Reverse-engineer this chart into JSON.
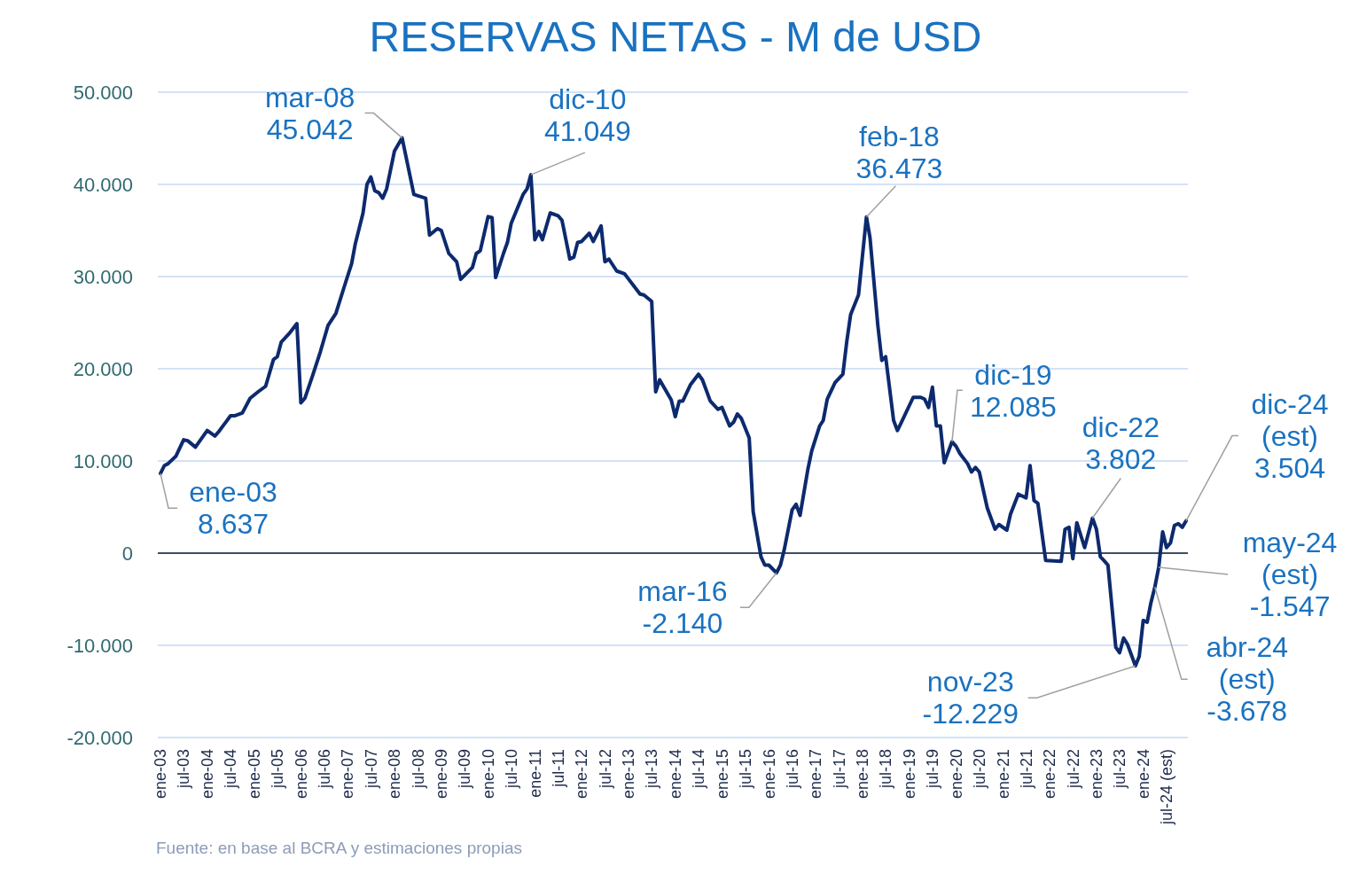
{
  "chart_data": {
    "type": "line",
    "title": "RESERVAS NETAS - M de USD",
    "x": [
      "2003-01",
      "2003-02",
      "2003-03",
      "2003-05",
      "2003-07",
      "2003-08",
      "2003-10",
      "2004-01",
      "2004-03",
      "2004-04",
      "2004-07",
      "2004-08",
      "2004-10",
      "2004-12",
      "2005-02",
      "2005-04",
      "2005-06",
      "2005-07",
      "2005-08",
      "2005-10",
      "2005-12",
      "2006-01",
      "2006-02",
      "2006-04",
      "2006-06",
      "2006-08",
      "2006-10",
      "2006-12",
      "2007-02",
      "2007-03",
      "2007-05",
      "2007-06",
      "2007-07",
      "2007-08",
      "2007-09",
      "2007-10",
      "2007-11",
      "2008-01",
      "2008-03",
      "2008-06",
      "2008-09",
      "2008-10",
      "2008-12",
      "2009-01",
      "2009-03",
      "2009-05",
      "2009-06",
      "2009-09",
      "2009-10",
      "2009-11",
      "2010-01",
      "2010-02",
      "2010-03",
      "2010-05",
      "2010-06",
      "2010-07",
      "2010-10",
      "2010-11",
      "2010-12",
      "2011-01",
      "2011-02",
      "2011-03",
      "2011-05",
      "2011-07",
      "2011-08",
      "2011-10",
      "2011-11",
      "2011-12",
      "2012-01",
      "2012-03",
      "2012-04",
      "2012-06",
      "2012-07",
      "2012-08",
      "2012-10",
      "2012-12",
      "2013-04",
      "2013-05",
      "2013-07",
      "2013-08",
      "2013-09",
      "2013-12",
      "2014-01",
      "2014-02",
      "2014-03",
      "2014-05",
      "2014-07",
      "2014-08",
      "2014-10",
      "2014-12",
      "2015-01",
      "2015-03",
      "2015-04",
      "2015-05",
      "2015-06",
      "2015-08",
      "2015-09",
      "2015-11",
      "2015-12",
      "2016-01",
      "2016-03",
      "2016-04",
      "2016-05",
      "2016-07",
      "2016-08",
      "2016-09",
      "2016-11",
      "2016-12",
      "2017-02",
      "2017-03",
      "2017-04",
      "2017-06",
      "2017-08",
      "2017-09",
      "2017-10",
      "2017-12",
      "2018-02",
      "2018-03",
      "2018-05",
      "2018-06",
      "2018-07",
      "2018-09",
      "2018-10",
      "2018-11",
      "2019-02",
      "2019-04",
      "2019-05",
      "2019-06",
      "2019-07",
      "2019-08",
      "2019-09",
      "2019-10",
      "2019-12",
      "2020-01",
      "2020-02",
      "2020-04",
      "2020-05",
      "2020-06",
      "2020-07",
      "2020-09",
      "2020-11",
      "2020-12",
      "2021-02",
      "2021-03",
      "2021-05",
      "2021-07",
      "2021-08",
      "2021-09",
      "2021-10",
      "2021-12",
      "2022-04",
      "2022-05",
      "2022-06",
      "2022-07",
      "2022-08",
      "2022-10",
      "2022-12",
      "2023-01",
      "2023-02",
      "2023-03",
      "2023-04",
      "2023-06",
      "2023-07",
      "2023-08",
      "2023-09",
      "2023-11",
      "2023-12",
      "2024-01",
      "2024-02",
      "2024-03",
      "2024-04",
      "2024-05",
      "2024-06",
      "2024-07",
      "2024-08",
      "2024-09",
      "2024-10",
      "2024-11",
      "2024-12"
    ],
    "series": [
      {
        "color": "#0d2a6e",
        "values": [
          8637,
          9500,
          9700,
          10500,
          12300,
          12200,
          11500,
          13300,
          12700,
          13200,
          14900,
          14900,
          15200,
          16800,
          17500,
          18100,
          21000,
          21300,
          22900,
          23800,
          24900,
          16300,
          16800,
          19200,
          21800,
          24700,
          26000,
          28700,
          31400,
          33500,
          36900,
          40000,
          40800,
          39300,
          39100,
          38500,
          39500,
          43600,
          45042,
          38900,
          38500,
          34500,
          35200,
          35000,
          32500,
          31600,
          29700,
          31000,
          32500,
          32800,
          36500,
          36400,
          29900,
          32500,
          33700,
          35800,
          38900,
          39500,
          41049,
          34000,
          34900,
          34000,
          36900,
          36600,
          36100,
          31900,
          32100,
          33700,
          33800,
          34700,
          33800,
          35500,
          31600,
          31900,
          30600,
          30300,
          28100,
          28000,
          27300,
          17500,
          18800,
          16600,
          14800,
          16500,
          16500,
          18300,
          19400,
          18800,
          16500,
          15600,
          15800,
          13800,
          14200,
          15100,
          14600,
          12500,
          4500,
          -400,
          -1300,
          -1300,
          -2140,
          -1300,
          400,
          4700,
          5300,
          4100,
          9100,
          11100,
          13800,
          14400,
          16700,
          18500,
          19400,
          23000,
          25900,
          28000,
          36473,
          34200,
          24700,
          20900,
          21300,
          14400,
          13300,
          14200,
          16900,
          16900,
          16700,
          15800,
          18000,
          13800,
          13800,
          9800,
          12085,
          11600,
          10800,
          9700,
          8800,
          9300,
          8800,
          4900,
          2600,
          3100,
          2500,
          4200,
          6400,
          6000,
          9500,
          5700,
          5400,
          -800,
          -900,
          2600,
          2800,
          -600,
          3300,
          600,
          3802,
          2600,
          -400,
          -800,
          -1300,
          -10200,
          -10800,
          -9200,
          -9900,
          -12229,
          -11200,
          -7300,
          -7500,
          -5400,
          -3678,
          -1547,
          2300,
          600,
          1100,
          3000,
          3200,
          2800,
          3504
        ]
      }
    ],
    "xlim": [
      "2003-01",
      "2024-12"
    ],
    "xticks": [
      {
        "value": "2003-01",
        "label": "ene-03"
      },
      {
        "value": "2003-07",
        "label": "jul-03"
      },
      {
        "value": "2004-01",
        "label": "ene-04"
      },
      {
        "value": "2004-07",
        "label": "jul-04"
      },
      {
        "value": "2005-01",
        "label": "ene-05"
      },
      {
        "value": "2005-07",
        "label": "jul-05"
      },
      {
        "value": "2006-01",
        "label": "ene-06"
      },
      {
        "value": "2006-07",
        "label": "jul-06"
      },
      {
        "value": "2007-01",
        "label": "ene-07"
      },
      {
        "value": "2007-07",
        "label": "jul-07"
      },
      {
        "value": "2008-01",
        "label": "ene-08"
      },
      {
        "value": "2008-07",
        "label": "jul-08"
      },
      {
        "value": "2009-01",
        "label": "ene-09"
      },
      {
        "value": "2009-07",
        "label": "jul-09"
      },
      {
        "value": "2010-01",
        "label": "ene-10"
      },
      {
        "value": "2010-07",
        "label": "jul-10"
      },
      {
        "value": "2011-01",
        "label": "ene-11"
      },
      {
        "value": "2011-07",
        "label": "jul-11"
      },
      {
        "value": "2012-01",
        "label": "ene-12"
      },
      {
        "value": "2012-07",
        "label": "jul-12"
      },
      {
        "value": "2013-01",
        "label": "ene-13"
      },
      {
        "value": "2013-07",
        "label": "jul-13"
      },
      {
        "value": "2014-01",
        "label": "ene-14"
      },
      {
        "value": "2014-07",
        "label": "jul-14"
      },
      {
        "value": "2015-01",
        "label": "ene-15"
      },
      {
        "value": "2015-07",
        "label": "jul-15"
      },
      {
        "value": "2016-01",
        "label": "ene-16"
      },
      {
        "value": "2016-07",
        "label": "jul-16"
      },
      {
        "value": "2017-01",
        "label": "ene-17"
      },
      {
        "value": "2017-07",
        "label": "jul-17"
      },
      {
        "value": "2018-01",
        "label": "ene-18"
      },
      {
        "value": "2018-07",
        "label": "jul-18"
      },
      {
        "value": "2019-01",
        "label": "ene-19"
      },
      {
        "value": "2019-07",
        "label": "jul-19"
      },
      {
        "value": "2020-01",
        "label": "ene-20"
      },
      {
        "value": "2020-07",
        "label": "jul-20"
      },
      {
        "value": "2021-01",
        "label": "ene-21"
      },
      {
        "value": "2021-07",
        "label": "jul-21"
      },
      {
        "value": "2022-01",
        "label": "ene-22"
      },
      {
        "value": "2022-07",
        "label": "jul-22"
      },
      {
        "value": "2023-01",
        "label": "ene-23"
      },
      {
        "value": "2023-07",
        "label": "jul-23"
      },
      {
        "value": "2024-01",
        "label": "ene-24"
      },
      {
        "value": "2024-07",
        "label": "jul-24 (est)"
      }
    ],
    "ylim": [
      -20000,
      50000
    ],
    "yticks": [
      {
        "value": -20000,
        "label": "-20.000"
      },
      {
        "value": -10000,
        "label": "-10.000"
      },
      0,
      {
        "value": 10000,
        "label": "10.000"
      },
      {
        "value": 20000,
        "label": "20.000"
      },
      {
        "value": 30000,
        "label": "30.000"
      },
      {
        "value": 40000,
        "label": "40.000"
      },
      {
        "value": 50000,
        "label": "50.000"
      }
    ],
    "grid": "y",
    "annotations": [
      {
        "text": "ene-03\n8.637",
        "x": "2003-01",
        "y": 8637
      },
      {
        "text": "mar-08\n45.042",
        "x": "2008-03",
        "y": 45042
      },
      {
        "text": "dic-10\n41.049",
        "x": "2010-12",
        "y": 41049
      },
      {
        "text": "feb-18\n36.473",
        "x": "2018-02",
        "y": 36473
      },
      {
        "text": "mar-16\n-2.140",
        "x": "2016-03",
        "y": -2140
      },
      {
        "text": "dic-19\n12.085",
        "x": "2019-12",
        "y": 12085
      },
      {
        "text": "dic-22\n3.802",
        "x": "2022-12",
        "y": 3802
      },
      {
        "text": "nov-23\n-12.229",
        "x": "2023-11",
        "y": -12229
      },
      {
        "text": "abr-24\n(est)\n-3.678",
        "x": "2024-04",
        "y": -3678
      },
      {
        "text": "may-24\n(est)\n-1.547",
        "x": "2024-05",
        "y": -1547
      },
      {
        "text": "dic-24\n(est)\n3.504",
        "x": "2024-12",
        "y": 3504
      },
      "Fuente: en base al BCRA y estimaciones propias"
    ]
  }
}
